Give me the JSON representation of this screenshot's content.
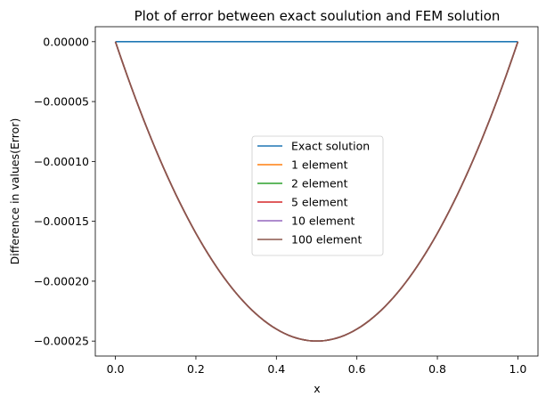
{
  "chart_data": {
    "type": "line",
    "title": "Plot of error between exact soulution and FEM solution",
    "xlabel": "x",
    "ylabel": "Difference in values(Error)",
    "xlim": [
      -0.05,
      1.05
    ],
    "ylim": [
      -0.0002625,
      1.25e-05
    ],
    "x_ticks": [
      0.0,
      0.2,
      0.4,
      0.6,
      0.8,
      1.0
    ],
    "x_tick_labels": [
      "0.0",
      "0.2",
      "0.4",
      "0.6",
      "0.8",
      "1.0"
    ],
    "y_ticks": [
      0.0,
      -5e-05,
      -0.0001,
      -0.00015,
      -0.0002,
      -0.00025
    ],
    "y_tick_labels": [
      "0.00000",
      "−0.00005",
      "−0.00010",
      "−0.00015",
      "−0.00020",
      "−0.00025"
    ],
    "grid": false,
    "legend_position": "center",
    "series": [
      {
        "name": "Exact solution",
        "color": "#1f77b4",
        "formula": "zero",
        "x": [
          0.0,
          1.0
        ],
        "y": [
          0.0,
          0.0
        ]
      },
      {
        "name": "1 element",
        "color": "#ff7f0e",
        "formula": "-x(1-x)/1000"
      },
      {
        "name": "2 element",
        "color": "#2ca02c",
        "formula": "-x(1-x)/1000"
      },
      {
        "name": "5 element",
        "color": "#d62728",
        "formula": "-x(1-x)/1000"
      },
      {
        "name": "10 element",
        "color": "#9467bd",
        "formula": "-x(1-x)/1000"
      },
      {
        "name": "100 element",
        "color": "#8c564b",
        "formula": "-x(1-x)/1000"
      }
    ]
  }
}
